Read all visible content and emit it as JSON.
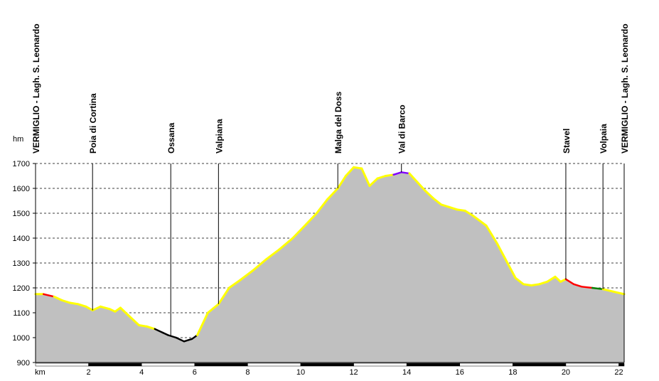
{
  "chart_data": {
    "type": "area",
    "title": "",
    "xlabel": "km",
    "ylabel": "hm",
    "xlim": [
      0,
      22.2
    ],
    "ylim": [
      900,
      1700
    ],
    "x_ticks": [
      2,
      4,
      6,
      8,
      10,
      12,
      14,
      16,
      18,
      20,
      22
    ],
    "y_ticks": [
      900,
      1000,
      1100,
      1200,
      1300,
      1400,
      1500,
      1600,
      1700
    ],
    "grid": true,
    "colors": {
      "fill": "#c0c0c0",
      "line_default": "#ffff00",
      "line_descent": "#ff0000",
      "line_black": "#000000",
      "line_green": "#008000",
      "line_purple": "#8000ff",
      "grid": "#000000"
    },
    "waypoints": [
      {
        "name": "VERMIGLIO - Lagh. S. Leonardo",
        "x": 0.0
      },
      {
        "name": "Poia di Cortina",
        "x": 2.15
      },
      {
        "name": "Ossana",
        "x": 5.1
      },
      {
        "name": "Valpiana",
        "x": 6.9
      },
      {
        "name": "Malga del Doss",
        "x": 11.4
      },
      {
        "name": "Val di Barco",
        "x": 13.8
      },
      {
        "name": "Stavel",
        "x": 20.0
      },
      {
        "name": "Volpaia",
        "x": 21.4
      },
      {
        "name": "VERMIGLIO - Lagh. S. Leonardo",
        "x": 22.2
      }
    ],
    "series": [
      {
        "values_x": [
          0,
          0.3,
          0.7,
          1.0,
          1.3,
          1.6,
          1.9,
          2.15,
          2.45,
          2.8,
          3.0,
          3.2,
          3.5,
          3.9,
          4.2,
          4.5,
          4.8,
          5.0,
          5.3,
          5.6,
          5.9,
          6.1,
          6.5,
          6.9,
          7.3,
          7.7,
          8.2,
          8.7,
          9.2,
          9.7,
          10.2,
          10.6,
          11.0,
          11.4,
          11.7,
          12.0,
          12.3,
          12.6,
          12.9,
          13.2,
          13.5,
          13.8,
          14.1,
          14.4,
          14.7,
          15.0,
          15.3,
          15.6,
          15.9,
          16.2,
          16.5,
          17.0,
          17.4,
          17.8,
          18.1,
          18.4,
          18.7,
          19.0,
          19.3,
          19.6,
          19.8,
          20.0,
          20.3,
          20.6,
          21.0,
          21.4,
          21.8,
          22.2
        ],
        "values_y": [
          1175,
          1175,
          1165,
          1150,
          1140,
          1135,
          1125,
          1110,
          1125,
          1115,
          1105,
          1120,
          1090,
          1050,
          1045,
          1035,
          1020,
          1010,
          1000,
          985,
          995,
          1010,
          1100,
          1135,
          1200,
          1230,
          1270,
          1315,
          1355,
          1400,
          1455,
          1500,
          1555,
          1600,
          1650,
          1685,
          1680,
          1610,
          1640,
          1650,
          1655,
          1665,
          1660,
          1625,
          1590,
          1560,
          1535,
          1525,
          1515,
          1510,
          1490,
          1450,
          1380,
          1300,
          1240,
          1215,
          1210,
          1215,
          1225,
          1245,
          1225,
          1235,
          1215,
          1205,
          1200,
          1195,
          1185,
          1175
        ]
      }
    ],
    "segments": [
      {
        "from": 0.3,
        "to": 0.7,
        "color": "#ff0000"
      },
      {
        "from": 4.5,
        "to": 4.8,
        "color": "#000000"
      },
      {
        "from": 4.8,
        "to": 6.1,
        "color": "#000000"
      },
      {
        "from": 12.5,
        "to": 12.7,
        "color": "#008000"
      },
      {
        "from": 13.5,
        "to": 13.6,
        "color": "#008000"
      },
      {
        "from": 13.6,
        "to": 14.1,
        "color": "#8000ff"
      },
      {
        "from": 20.0,
        "to": 20.8,
        "color": "#ff0000"
      },
      {
        "from": 20.8,
        "to": 21.4,
        "color": "#008000"
      },
      {
        "from": 21.7,
        "to": 21.9,
        "color": "#008000"
      }
    ]
  }
}
